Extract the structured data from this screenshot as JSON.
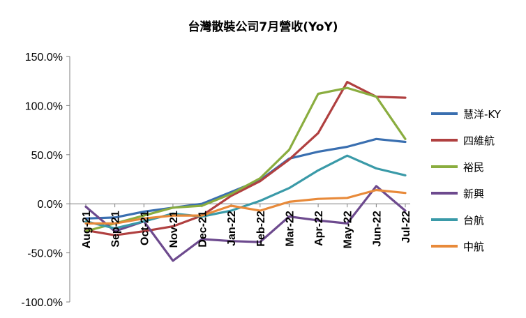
{
  "chart_data": {
    "type": "line",
    "title": "台灣散裝公司7月營收(YoY)",
    "xlabel": "",
    "ylabel": "",
    "categories": [
      "Aug-21",
      "Sep-21",
      "Oct-21",
      "Nov-21",
      "Dec-21",
      "Jan-22",
      "Feb-22",
      "Mar-22",
      "Apr-22",
      "May-22",
      "Jun-22",
      "Jul-22"
    ],
    "ylim": [
      -100,
      150
    ],
    "yticks": [
      -100,
      -50,
      0,
      50,
      100,
      150
    ],
    "ytick_labels": [
      "-100.0%",
      "-50.0%",
      "0.0%",
      "50.0%",
      "100.0%",
      "150.0%"
    ],
    "grid": false,
    "legend_position": "right",
    "series": [
      {
        "name": "慧洋-KY",
        "color": "#3a6fb0",
        "values": [
          -15,
          -14,
          -8,
          -4,
          0,
          12,
          24,
          46,
          53,
          58,
          66,
          63
        ]
      },
      {
        "name": "四維航",
        "color": "#b04040",
        "values": [
          -27,
          -32,
          -28,
          -23,
          -12,
          8,
          23,
          45,
          72,
          124,
          109,
          108
        ]
      },
      {
        "name": "裕民",
        "color": "#8aad3f",
        "values": [
          -28,
          -20,
          -12,
          -4,
          -2,
          10,
          26,
          55,
          112,
          118,
          109,
          66
        ]
      },
      {
        "name": "新興",
        "color": "#6d4a8e",
        "values": [
          -3,
          -28,
          -18,
          -58,
          -36,
          -38,
          -39,
          -13,
          -17,
          -20,
          18,
          -7
        ]
      },
      {
        "name": "台航",
        "color": "#3a9aa8",
        "values": [
          -18,
          -25,
          -18,
          -10,
          -13,
          -7,
          3,
          16,
          34,
          49,
          36,
          29
        ]
      },
      {
        "name": "中航",
        "color": "#e88a3a",
        "values": [
          -20,
          -20,
          -15,
          -12,
          -12,
          -2,
          -7,
          2,
          5,
          6,
          14,
          11
        ]
      }
    ]
  }
}
